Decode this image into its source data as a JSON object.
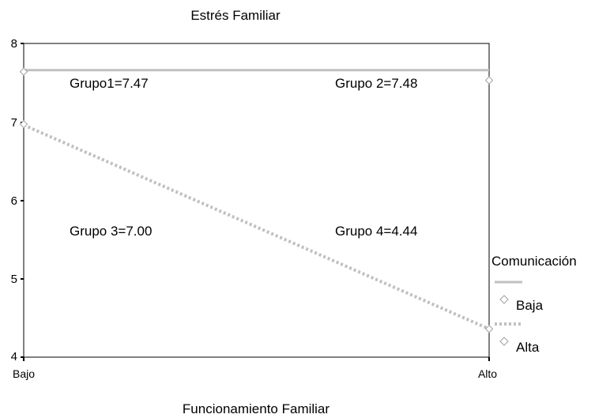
{
  "chart_data": {
    "type": "line",
    "title": "Estrés Familiar",
    "xlabel": "Funcionamiento Familiar",
    "ylabel": "",
    "categories": [
      "Bajo",
      "Alto"
    ],
    "ylim": [
      4,
      8
    ],
    "yticks": [
      "4",
      "5",
      "6",
      "7",
      "8"
    ],
    "grid": false,
    "legend_title": "Comunicación",
    "legend_position": "right",
    "series": [
      {
        "name": "Baja",
        "values": [
          7.66,
          7.66
        ],
        "marker_values": [
          7.64,
          7.53
        ],
        "color": "#c0c0c0",
        "style": "solid"
      },
      {
        "name": "Alta",
        "values": [
          6.96,
          4.36
        ],
        "marker_values": [
          6.97,
          4.36
        ],
        "color": "#c0c0c0",
        "style": "dotted"
      }
    ],
    "annotations": [
      {
        "text": "Grupo1=7.47"
      },
      {
        "text": "Grupo 2=7.48"
      },
      {
        "text": "Grupo 3=7.00"
      },
      {
        "text": "Grupo 4=4.44"
      }
    ]
  }
}
